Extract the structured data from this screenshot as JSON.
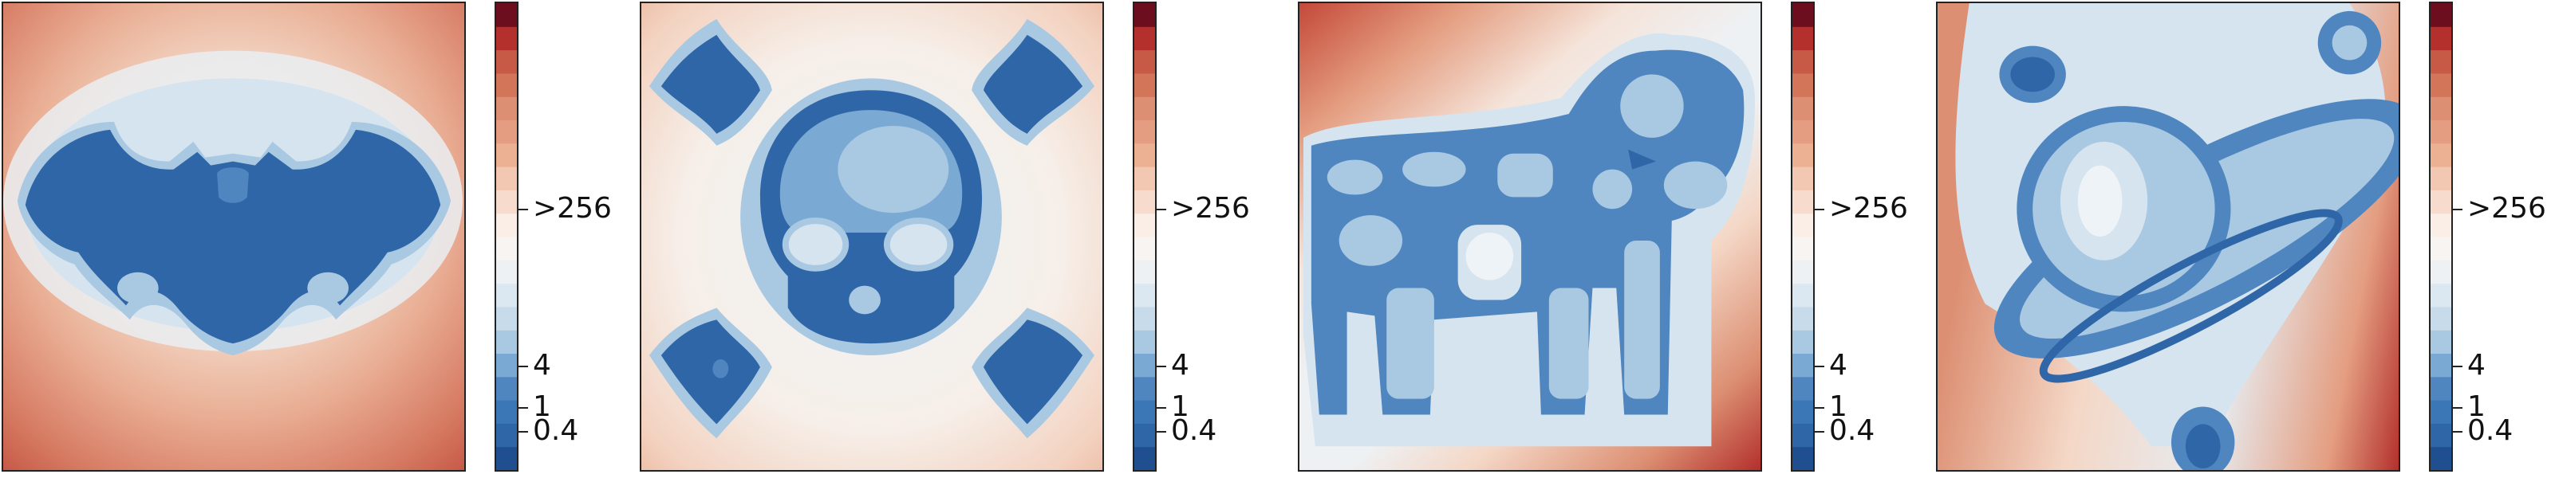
{
  "chart_data": [
    {
      "type": "heatmap",
      "shape": "bat",
      "colormap": "RdBu_r",
      "colorbar": {
        "ticks": [
          "0.4",
          "1",
          "4",
          ">256"
        ],
        "levels": 20
      }
    },
    {
      "type": "heatmap",
      "shape": "skull-and-crossbones",
      "colormap": "RdBu_r",
      "colorbar": {
        "ticks": [
          "0.4",
          "1",
          "4",
          ">256"
        ],
        "levels": 20
      }
    },
    {
      "type": "heatmap",
      "shape": "cow",
      "colormap": "RdBu_r",
      "colorbar": {
        "ticks": [
          "0.4",
          "1",
          "4",
          ">256"
        ],
        "levels": 20
      }
    },
    {
      "type": "heatmap",
      "shape": "planet",
      "colormap": "RdBu_r",
      "colorbar": {
        "ticks": [
          "0.4",
          "1",
          "4",
          ">256"
        ],
        "levels": 20
      }
    }
  ],
  "colors": {
    "deep_blue": "#2d5f9e",
    "mid_blue": "#4f86c0",
    "light_blue": "#a6c8e3",
    "pale_blue": "#d7e6f1",
    "near_white": "#f5f3f2",
    "pale_red": "#f4cdb8",
    "mid_red": "#dc8f72",
    "dark_red": "#b2302c",
    "deepest_red": "#6d0e1f"
  }
}
